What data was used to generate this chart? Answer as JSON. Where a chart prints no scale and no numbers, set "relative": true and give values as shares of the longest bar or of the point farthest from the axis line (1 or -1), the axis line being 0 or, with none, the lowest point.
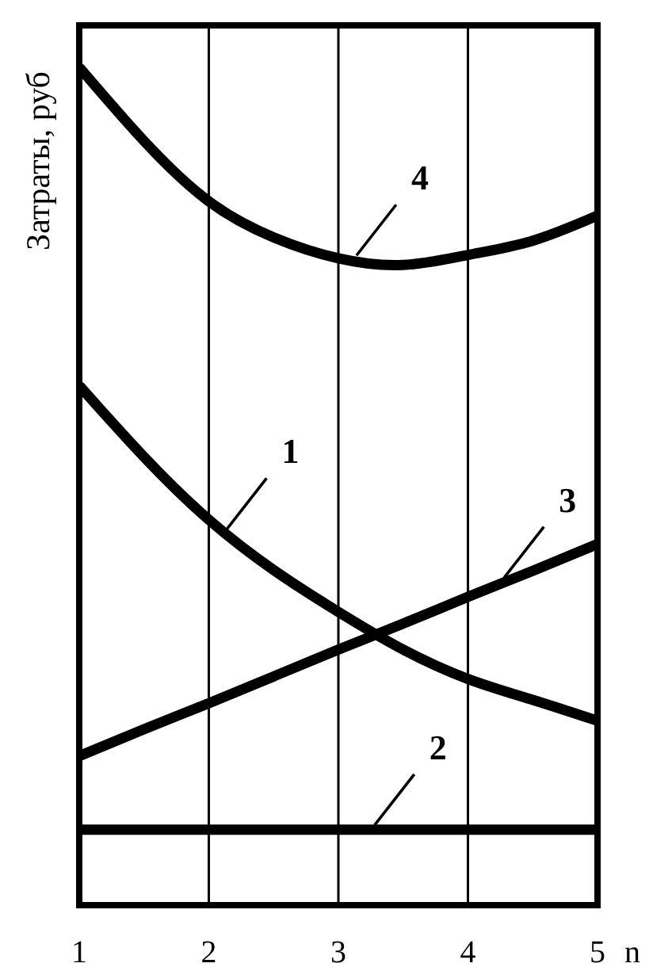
{
  "chart_data": {
    "type": "line",
    "ylabel": "Затраты, руб",
    "xlabel": "n",
    "relative": true,
    "grid": "x",
    "marker": "none",
    "line_style": "solid",
    "x": [
      1,
      1.5,
      2,
      2.5,
      3,
      3.5,
      4,
      4.5,
      5
    ],
    "xlim": [
      1,
      5
    ],
    "xticks": [
      1,
      2,
      3,
      4,
      5
    ],
    "series": [
      {
        "name": "1",
        "color": "#000000",
        "values": [
          0.62,
          0.535,
          0.46,
          0.4,
          0.35,
          0.305,
          0.27,
          0.245,
          0.22
        ]
      },
      {
        "name": "2",
        "color": "#000000",
        "values": [
          0.09,
          0.09,
          0.09,
          0.09,
          0.09,
          0.09,
          0.09,
          0.09,
          0.09
        ]
      },
      {
        "name": "3",
        "color": "#000000",
        "values": [
          0.178,
          0.21,
          0.241,
          0.273,
          0.305,
          0.336,
          0.368,
          0.399,
          0.431
        ]
      },
      {
        "name": "4",
        "color": "#000000",
        "values": [
          1.0,
          0.912,
          0.84,
          0.797,
          0.772,
          0.764,
          0.776,
          0.793,
          0.823
        ]
      }
    ]
  }
}
